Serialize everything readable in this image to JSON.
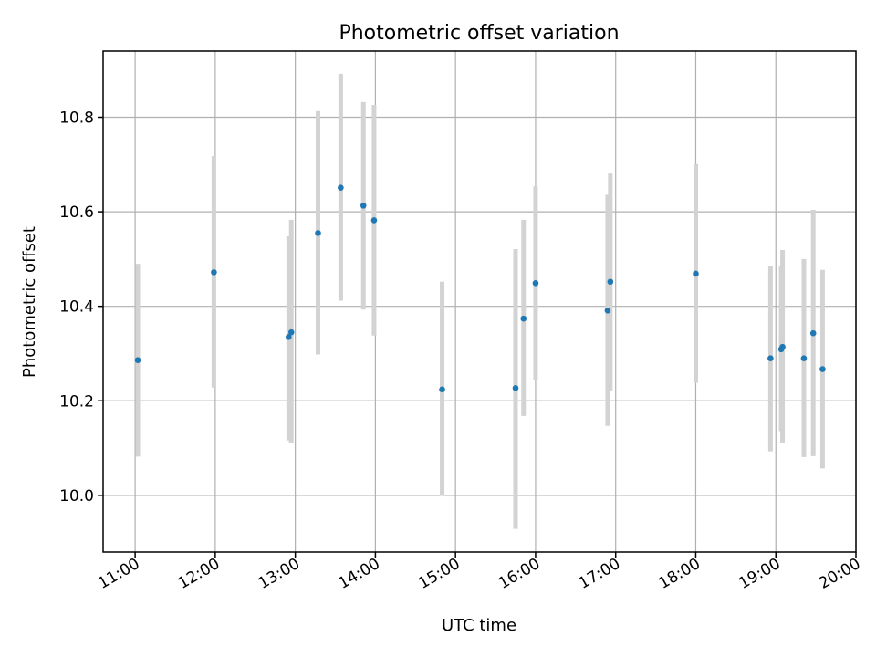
{
  "chart_data": {
    "type": "scatter",
    "title": "Photometric offset variation",
    "xlabel": "UTC time",
    "ylabel": "Photometric offset",
    "xlim": [
      "10:36",
      "20:00"
    ],
    "ylim": [
      9.88,
      10.94
    ],
    "x_ticks": [
      "11:00",
      "12:00",
      "13:00",
      "14:00",
      "15:00",
      "16:00",
      "17:00",
      "18:00",
      "19:00",
      "20:00"
    ],
    "y_ticks": [
      "10.0",
      "10.2",
      "10.4",
      "10.6",
      "10.8"
    ],
    "grid": true,
    "point_color": "#1f77b4",
    "errorbar_color": "#d3d3d3",
    "points": [
      {
        "x": "11:02",
        "y": 10.286,
        "ylow": 10.082,
        "yhigh": 10.49
      },
      {
        "x": "11:59",
        "y": 10.472,
        "ylow": 10.228,
        "yhigh": 10.718
      },
      {
        "x": "12:55",
        "y": 10.335,
        "ylow": 10.116,
        "yhigh": 10.548
      },
      {
        "x": "12:57",
        "y": 10.345,
        "ylow": 10.11,
        "yhigh": 10.583
      },
      {
        "x": "13:17",
        "y": 10.555,
        "ylow": 10.298,
        "yhigh": 10.813
      },
      {
        "x": "13:34",
        "y": 10.651,
        "ylow": 10.412,
        "yhigh": 10.892
      },
      {
        "x": "13:51",
        "y": 10.613,
        "ylow": 10.393,
        "yhigh": 10.832
      },
      {
        "x": "13:59",
        "y": 10.582,
        "ylow": 10.338,
        "yhigh": 10.826
      },
      {
        "x": "14:50",
        "y": 10.224,
        "ylow": 9.999,
        "yhigh": 10.452
      },
      {
        "x": "15:45",
        "y": 10.227,
        "ylow": 9.929,
        "yhigh": 10.521
      },
      {
        "x": "15:51",
        "y": 10.374,
        "ylow": 10.168,
        "yhigh": 10.583
      },
      {
        "x": "16:00",
        "y": 10.449,
        "ylow": 10.245,
        "yhigh": 10.654
      },
      {
        "x": "16:54",
        "y": 10.391,
        "ylow": 10.147,
        "yhigh": 10.636
      },
      {
        "x": "16:56",
        "y": 10.452,
        "ylow": 10.222,
        "yhigh": 10.681
      },
      {
        "x": "18:00",
        "y": 10.469,
        "ylow": 10.238,
        "yhigh": 10.701
      },
      {
        "x": "18:56",
        "y": 10.29,
        "ylow": 10.093,
        "yhigh": 10.486
      },
      {
        "x": "19:04",
        "y": 10.309,
        "ylow": 10.136,
        "yhigh": 10.484
      },
      {
        "x": "19:05",
        "y": 10.314,
        "ylow": 10.111,
        "yhigh": 10.519
      },
      {
        "x": "19:21",
        "y": 10.29,
        "ylow": 10.081,
        "yhigh": 10.5
      },
      {
        "x": "19:28",
        "y": 10.343,
        "ylow": 10.083,
        "yhigh": 10.604
      },
      {
        "x": "19:35",
        "y": 10.267,
        "ylow": 10.057,
        "yhigh": 10.477
      }
    ]
  }
}
